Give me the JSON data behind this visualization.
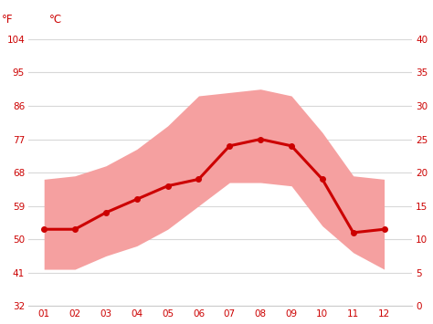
{
  "months": [
    1,
    2,
    3,
    4,
    5,
    6,
    7,
    8,
    9,
    10,
    11,
    12
  ],
  "month_labels": [
    "01",
    "02",
    "03",
    "04",
    "05",
    "06",
    "07",
    "08",
    "09",
    "10",
    "11",
    "12"
  ],
  "avg_line_c": [
    11.5,
    11.5,
    14.0,
    16.0,
    18.0,
    19.0,
    24.0,
    25.0,
    24.0,
    19.0,
    11.0,
    11.5
  ],
  "band_high_c": [
    19.0,
    19.5,
    21.0,
    23.5,
    27.0,
    31.5,
    32.0,
    32.5,
    31.5,
    26.0,
    19.5,
    19.0
  ],
  "band_low_c": [
    5.5,
    5.5,
    7.5,
    9.0,
    11.5,
    15.0,
    18.5,
    18.5,
    18.0,
    12.0,
    8.0,
    5.5
  ],
  "yticks_c": [
    0,
    5,
    10,
    15,
    20,
    25,
    30,
    35,
    40
  ],
  "yticks_f": [
    32,
    41,
    50,
    59,
    68,
    77,
    86,
    95,
    104
  ],
  "ylim_c": [
    0,
    40
  ],
  "xlim": [
    0.5,
    12.9
  ],
  "line_color": "#cc0000",
  "band_color": "#f5a0a0",
  "axis_color": "#cc0000",
  "bg_color": "#ffffff",
  "grid_color": "#d8d8d8",
  "label_f": "°F",
  "label_c": "°C"
}
